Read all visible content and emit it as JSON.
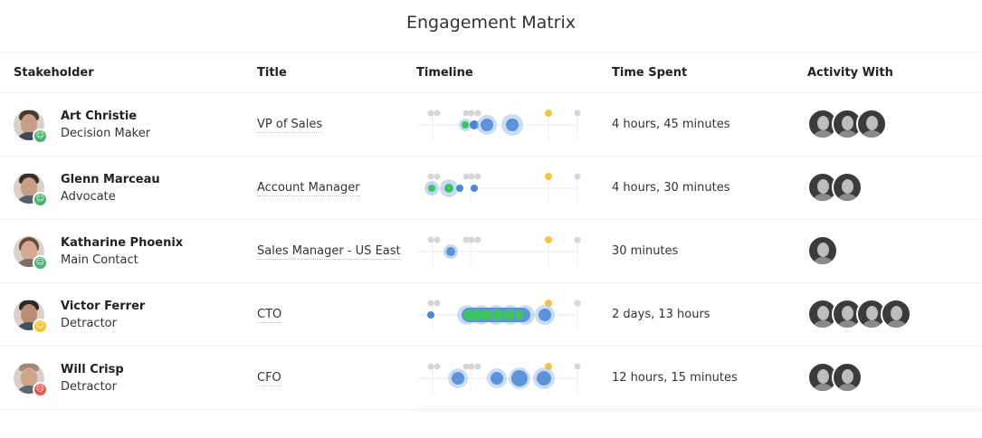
{
  "page_title": "Engagement Matrix",
  "columns": {
    "stakeholder": "Stakeholder",
    "title": "Title",
    "timeline": "Timeline",
    "time_spent": "Time Spent",
    "activity_with": "Activity With"
  },
  "colors": {
    "positive": "#4caf73",
    "neutral": "#f2c12e",
    "negative": "#e05a4f",
    "timeline_blue": "#4a86d4",
    "timeline_green": "#3fc463",
    "timeline_yellow": "#f5c242",
    "timeline_gray": "#cccccc"
  },
  "rows": [
    {
      "name": "Art Christie",
      "role": "Decision Maker",
      "title": "VP of Sales",
      "time_spent": "4 hours, 45 minutes",
      "sentiment": "positive",
      "sentiment_icon": "smiley-icon",
      "activity_count": 3
    },
    {
      "name": "Glenn Marceau",
      "role": "Advocate",
      "title": "Account Manager",
      "time_spent": "4 hours, 30 minutes",
      "sentiment": "positive",
      "sentiment_icon": "smiley-icon",
      "activity_count": 2
    },
    {
      "name": "Katharine Phoenix",
      "role": "Main Contact",
      "title": "Sales Manager - US East",
      "time_spent": "30 minutes",
      "sentiment": "positive",
      "sentiment_icon": "smiley-icon",
      "activity_count": 1
    },
    {
      "name": "Victor Ferrer",
      "role": "Detractor",
      "title": "CTO",
      "time_spent": "2 days, 13 hours",
      "sentiment": "neutral",
      "sentiment_icon": "neutral-face-icon",
      "activity_count": 4
    },
    {
      "name": "Will Crisp",
      "role": "Detractor",
      "title": "CFO",
      "time_spent": "12 hours, 15 minutes",
      "sentiment": "negative",
      "sentiment_icon": "frown-icon",
      "activity_count": 2
    }
  ]
}
